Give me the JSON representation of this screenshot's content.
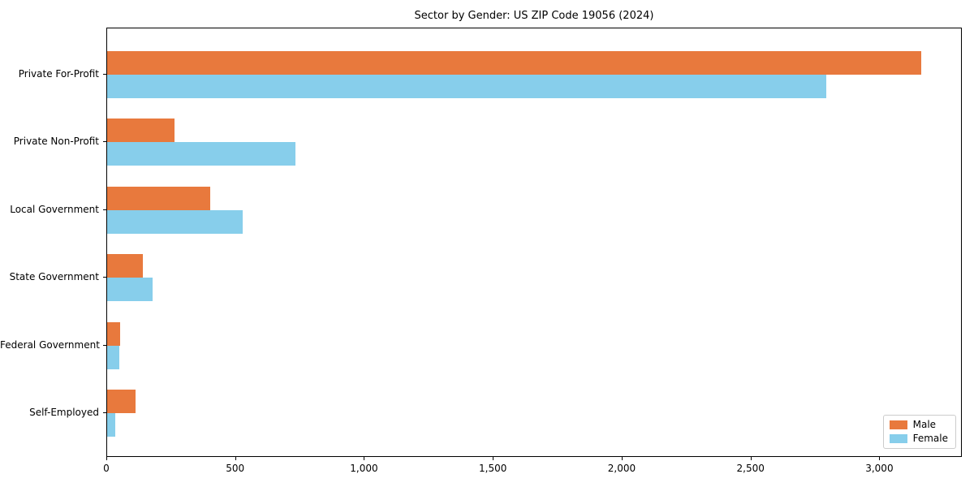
{
  "chart_data": {
    "type": "bar",
    "orientation": "horizontal",
    "title": "Sector by Gender: US ZIP Code 19056 (2024)",
    "categories": [
      "Private For-Profit",
      "Private Non-Profit",
      "Local Government",
      "State Government",
      "Federal Government",
      "Self-Employed"
    ],
    "series": [
      {
        "name": "Male",
        "color": "#e8793d",
        "values": [
          3160,
          260,
          400,
          140,
          50,
          110
        ]
      },
      {
        "name": "Female",
        "color": "#87ceeb",
        "values": [
          2790,
          730,
          525,
          175,
          47,
          30
        ]
      }
    ],
    "xlabel": "",
    "ylabel": "",
    "xlim": [
      0,
      3320
    ],
    "x_ticks": [
      0,
      500,
      1000,
      1500,
      2000,
      2500,
      3000
    ],
    "x_tick_labels": [
      "0",
      "500",
      "1,000",
      "1,500",
      "2,000",
      "2,500",
      "3,000"
    ],
    "grid": false,
    "legend_position": "lower right",
    "spine_color": "#000000",
    "legend_border_color": "#cccccc"
  }
}
